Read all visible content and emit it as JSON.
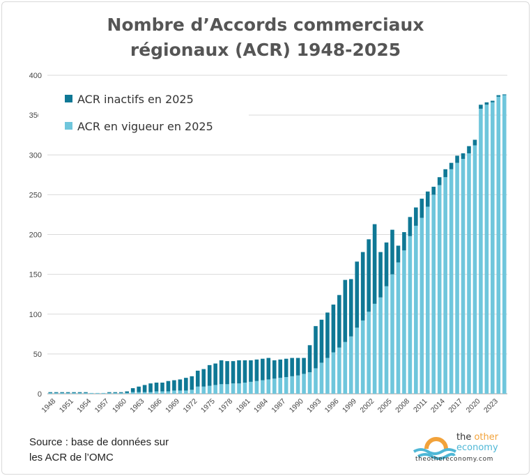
{
  "title_line1": "Nombre d’Accords commerciaux",
  "title_line2": "régionaux (ACR) 1948-2025",
  "source_line1": "Source : base de données sur",
  "source_line2": "les ACR de l’OMC",
  "logo": {
    "word1": "the ",
    "word1_accent": "other",
    "word2": "economy",
    "url": "theothereconomy.com",
    "icon": "sun-over-waves-icon"
  },
  "colors": {
    "inactive": "#0f7895",
    "in_force": "#6fc6dc",
    "grid": "#d9d9d9",
    "title": "#555555"
  },
  "chart_data": {
    "type": "bar",
    "stacked": true,
    "x": [
      1948,
      1949,
      1950,
      1951,
      1952,
      1953,
      1954,
      1955,
      1956,
      1957,
      1958,
      1959,
      1960,
      1961,
      1962,
      1963,
      1964,
      1965,
      1966,
      1967,
      1968,
      1969,
      1970,
      1971,
      1972,
      1973,
      1974,
      1975,
      1976,
      1977,
      1978,
      1979,
      1980,
      1981,
      1982,
      1983,
      1984,
      1985,
      1986,
      1987,
      1988,
      1989,
      1990,
      1991,
      1992,
      1993,
      1994,
      1995,
      1996,
      1997,
      1998,
      1999,
      2000,
      2001,
      2002,
      2003,
      2004,
      2005,
      2006,
      2007,
      2008,
      2009,
      2010,
      2011,
      2012,
      2013,
      2014,
      2015,
      2016,
      2017,
      2018,
      2019,
      2020,
      2021,
      2022,
      2023,
      2024,
      2025
    ],
    "tick_labels": [
      "1948",
      "1951",
      "1954",
      "1957",
      "1960",
      "1963",
      "1966",
      "1969",
      "1972",
      "1975",
      "1978",
      "1981",
      "1984",
      "1987",
      "1990",
      "1993",
      "1996",
      "1999",
      "2002",
      "2005",
      "2008",
      "2011",
      "2014",
      "2017",
      "2020",
      "2023"
    ],
    "ylim": [
      0,
      400
    ],
    "yticks": [
      0,
      50,
      100,
      150,
      200,
      250,
      300,
      350,
      400
    ],
    "ytick_labels": [
      "0",
      "50",
      "100",
      "150",
      "200",
      "250",
      "300",
      "350",
      "400"
    ],
    "legend_position": "top-left",
    "grid": true,
    "series": [
      {
        "name": "ACR en vigueur en 2025",
        "values": [
          1,
          1,
          1,
          1,
          1,
          1,
          1,
          1,
          1,
          1,
          1,
          1,
          1,
          1,
          2,
          2,
          2,
          2,
          3,
          3,
          3,
          4,
          4,
          4,
          5,
          9,
          9,
          10,
          11,
          12,
          12,
          13,
          13,
          14,
          15,
          16,
          17,
          18,
          19,
          20,
          21,
          22,
          23,
          25,
          27,
          32,
          39,
          45,
          52,
          58,
          65,
          72,
          83,
          92,
          103,
          113,
          121,
          135,
          150,
          165,
          180,
          198,
          211,
          221,
          235,
          250,
          262,
          272,
          282,
          290,
          295,
          302,
          312,
          358,
          363,
          366,
          373,
          375
        ]
      },
      {
        "name": "ACR inactifs en 2025",
        "values": [
          1,
          1,
          1,
          1,
          1,
          1,
          1,
          0,
          0,
          0,
          1,
          1,
          1,
          2,
          5,
          7,
          9,
          11,
          11,
          11,
          13,
          13,
          14,
          16,
          17,
          20,
          22,
          26,
          27,
          30,
          29,
          28,
          29,
          28,
          27,
          27,
          27,
          27,
          23,
          23,
          23,
          23,
          22,
          20,
          34,
          53,
          54,
          57,
          60,
          66,
          78,
          72,
          83,
          86,
          91,
          100,
          57,
          55,
          56,
          21,
          23,
          24,
          23,
          24,
          19,
          10,
          10,
          10,
          8,
          9,
          7,
          9,
          7,
          5,
          3,
          2,
          2,
          1
        ]
      }
    ]
  }
}
